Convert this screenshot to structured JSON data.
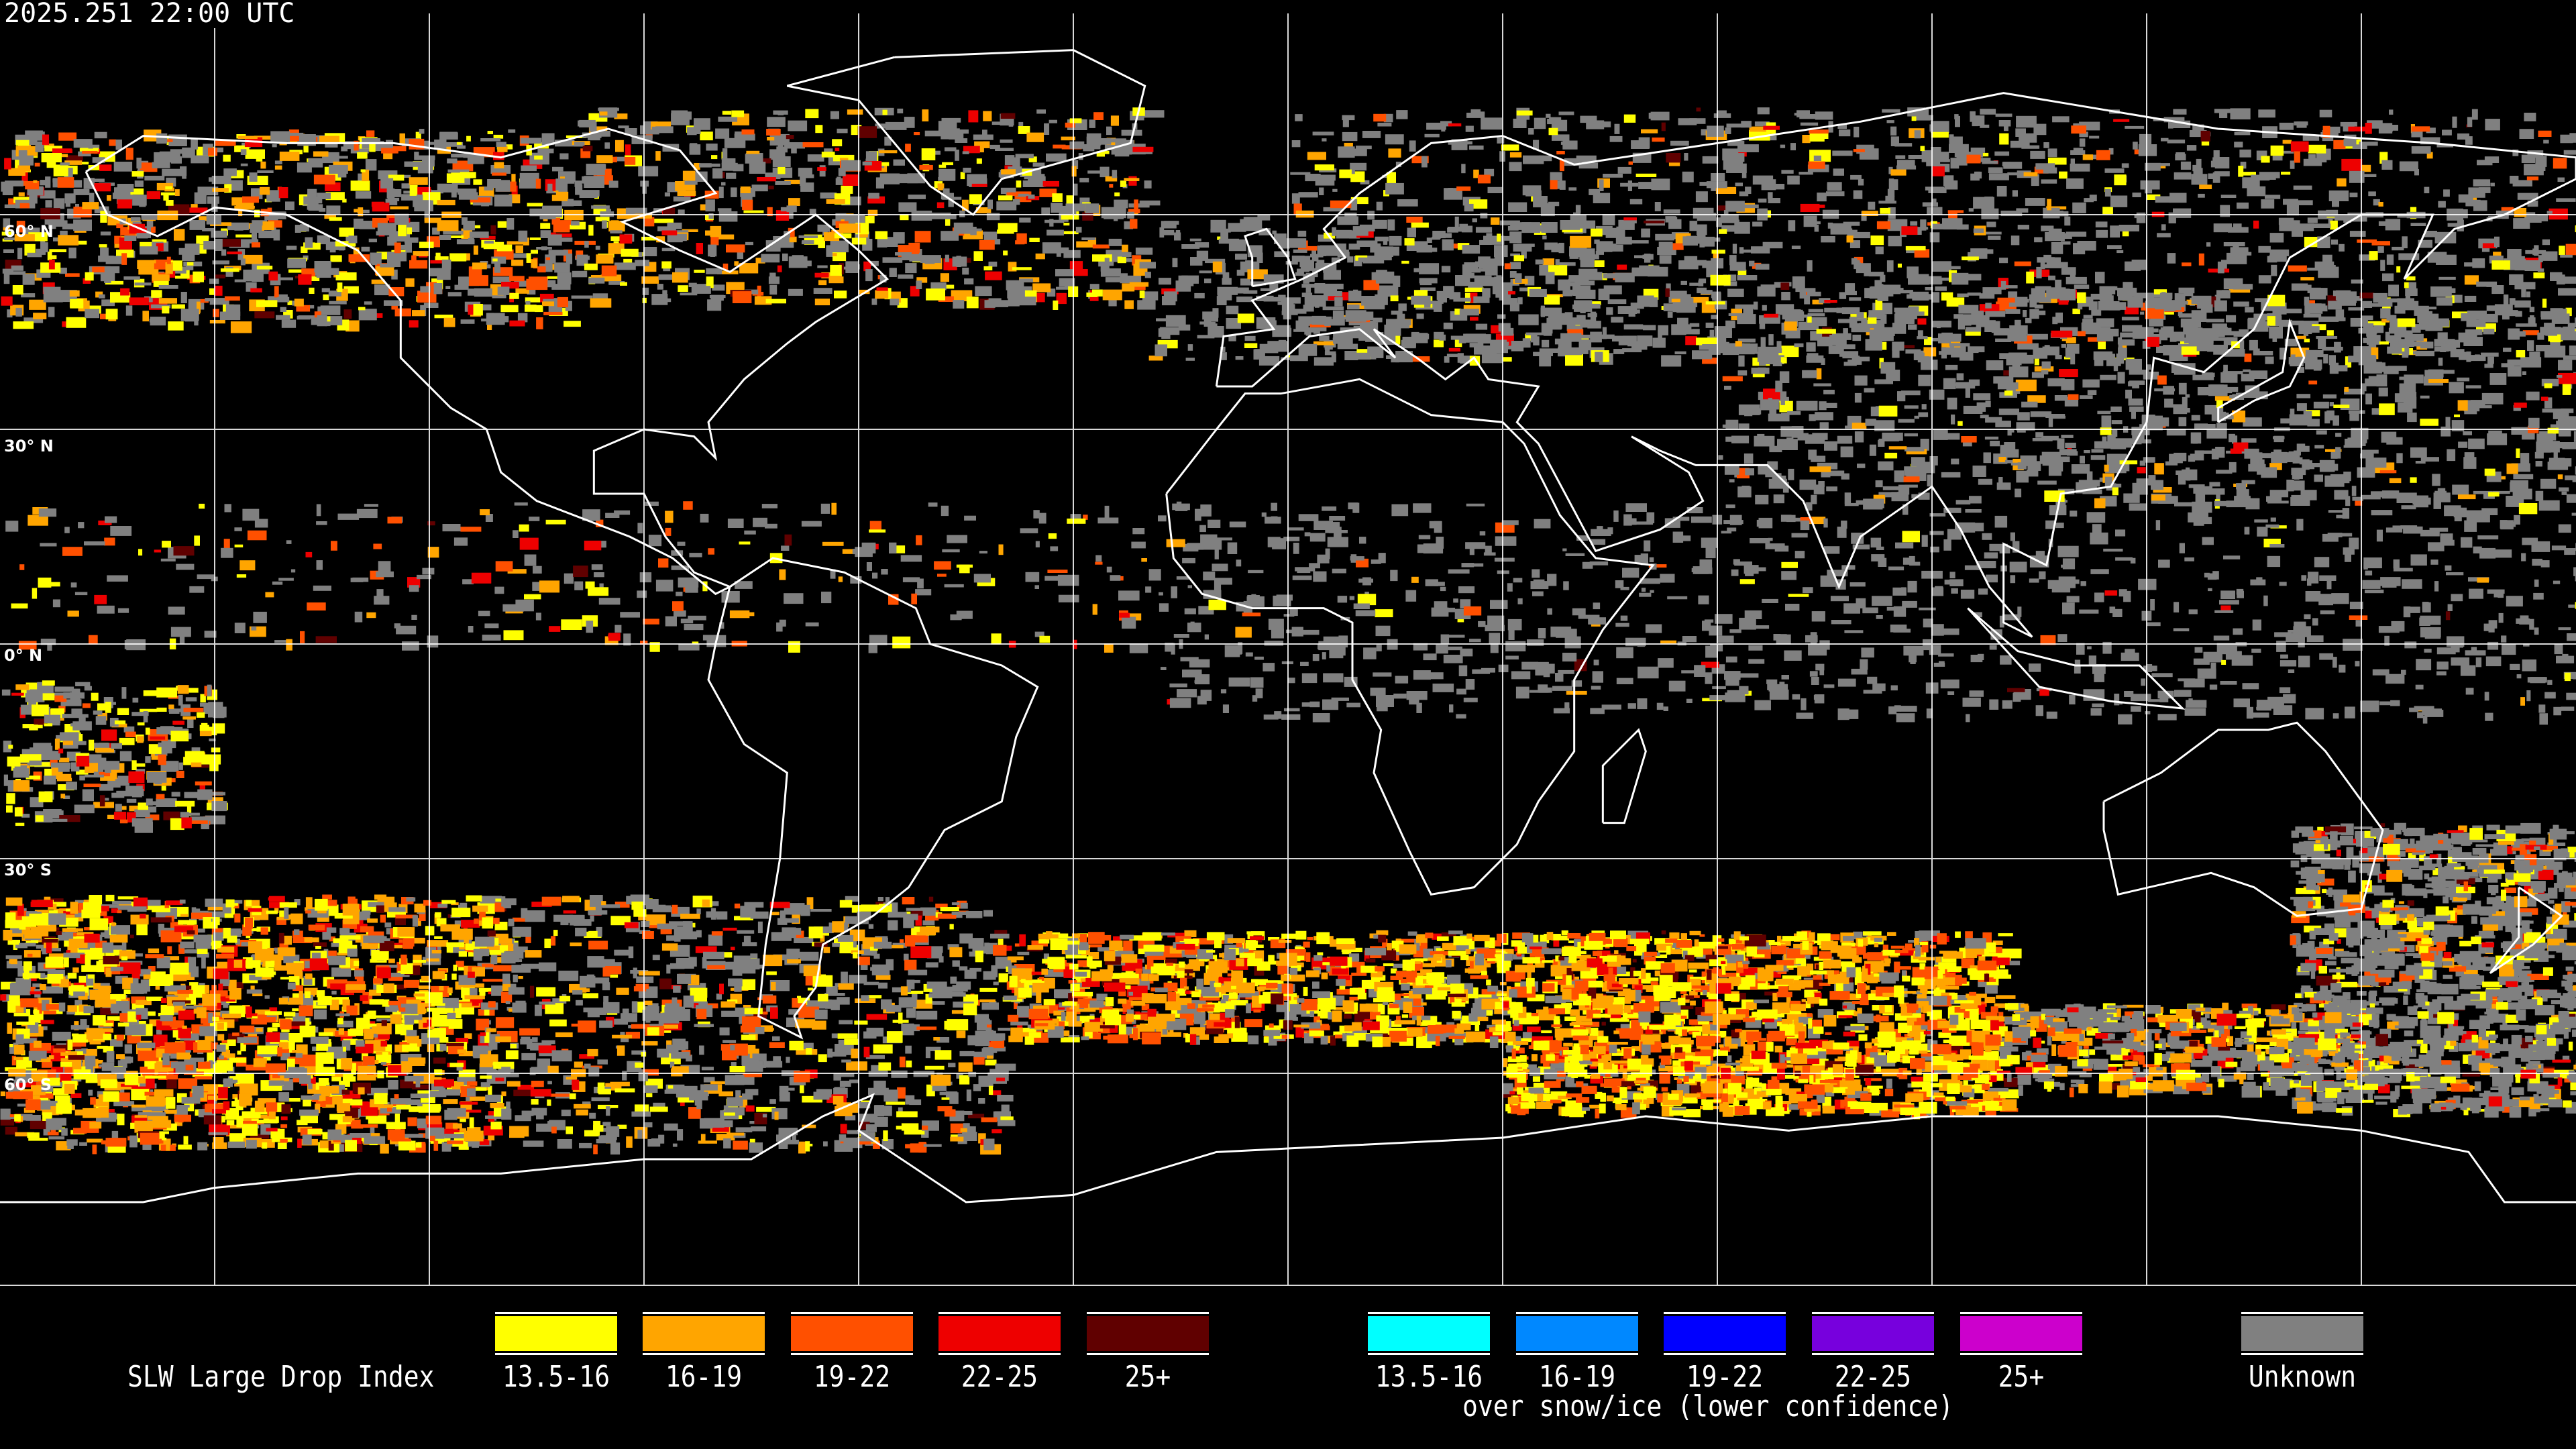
{
  "header": {
    "timestamp": "2025.251 22:00 UTC"
  },
  "map": {
    "projection": "equirectangular",
    "grid_spacing_deg": 30,
    "lat_labels": [
      "60° N",
      "30° N",
      "0° N",
      "30° S",
      "60° S"
    ],
    "colors": {
      "background": "#000000",
      "coastline": "#ffffff",
      "grid": "#ffffff"
    }
  },
  "legend": {
    "title": "SLW Large Drop Index",
    "primary": [
      {
        "label": "13.5-16",
        "color": "#ffff00"
      },
      {
        "label": "16-19",
        "color": "#ffa500"
      },
      {
        "label": "19-22",
        "color": "#ff5000"
      },
      {
        "label": "22-25",
        "color": "#ee0000"
      },
      {
        "label": "25+",
        "color": "#600000"
      }
    ],
    "snow_ice": [
      {
        "label": "13.5-16",
        "color": "#00ffff"
      },
      {
        "label": "16-19",
        "color": "#0088ff"
      },
      {
        "label": "19-22",
        "color": "#0000ff"
      },
      {
        "label": "22-25",
        "color": "#7700dd"
      },
      {
        "label": "25+",
        "color": "#cc00cc"
      }
    ],
    "snow_ice_caption": "over snow/ice (lower confidence)",
    "unknown": {
      "label": "Unknown",
      "color": "#808080"
    }
  }
}
